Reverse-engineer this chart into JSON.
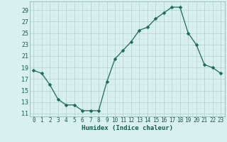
{
  "x": [
    0,
    1,
    2,
    3,
    4,
    5,
    6,
    7,
    8,
    9,
    10,
    11,
    12,
    13,
    14,
    15,
    16,
    17,
    18,
    19,
    20,
    21,
    22,
    23
  ],
  "y": [
    18.5,
    18.0,
    16.0,
    13.5,
    12.5,
    12.5,
    11.5,
    11.5,
    11.5,
    16.5,
    20.5,
    22.0,
    23.5,
    25.5,
    26.0,
    27.5,
    28.5,
    29.5,
    29.5,
    25.0,
    23.0,
    19.5,
    19.0,
    18.0
  ],
  "line_color": "#1a6b5a",
  "marker": "D",
  "marker_size": 2.5,
  "bg_color": "#d8f0f0",
  "grid_color_major": "#b8d4d4",
  "grid_color_minor": "#cce4e4",
  "xlabel": "Humidex (Indice chaleur)",
  "xlim": [
    -0.5,
    23.5
  ],
  "ylim": [
    10.5,
    30.5
  ],
  "yticks": [
    11,
    13,
    15,
    17,
    19,
    21,
    23,
    25,
    27,
    29
  ],
  "xticks": [
    0,
    1,
    2,
    3,
    4,
    5,
    6,
    7,
    8,
    9,
    10,
    11,
    12,
    13,
    14,
    15,
    16,
    17,
    18,
    19,
    20,
    21,
    22,
    23
  ],
  "tick_color": "#1a5a4a",
  "label_color": "#1a5a4a"
}
